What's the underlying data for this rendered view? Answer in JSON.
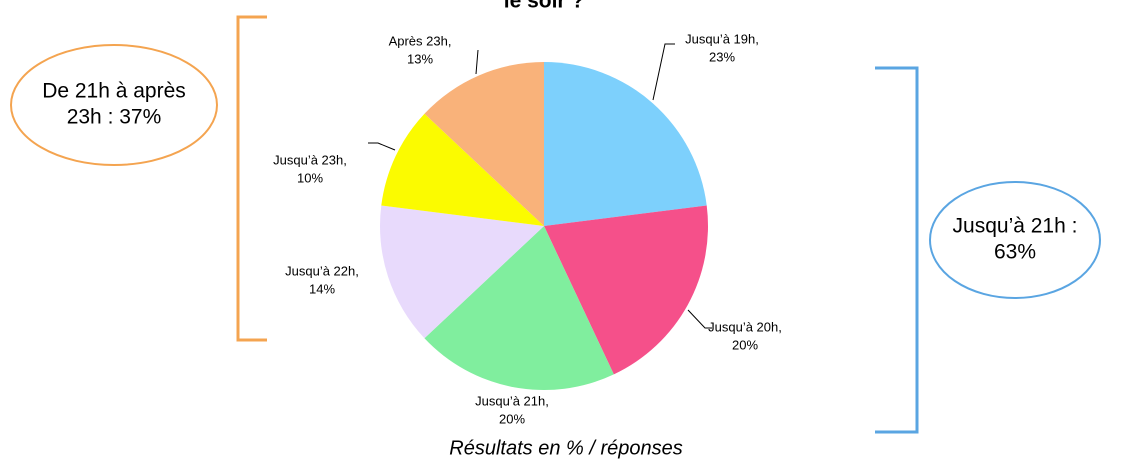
{
  "chart_data": {
    "type": "pie",
    "title": "le soir ?",
    "caption": "Résultats en % / réponses",
    "categories": [
      "Jusqu’à 19h,",
      "Jusqu’à 20h,",
      "Jusqu’à 21h,",
      "Jusqu’à 22h,",
      "Jusqu’à 23h,",
      "Après 23h,"
    ],
    "values": [
      23,
      20,
      20,
      14,
      10,
      13
    ],
    "value_labels": [
      "23%",
      "20%",
      "20%",
      "14%",
      "10%",
      "13%"
    ],
    "colors": [
      "#7dd0fc",
      "#f5508a",
      "#80ee9e",
      "#e8dafc",
      "#fbfb00",
      "#f9b27a"
    ],
    "annotations": [
      {
        "lines": [
          "De 21h à après",
          "23h : 37%"
        ],
        "color": "#f4a450"
      },
      {
        "lines": [
          "Jusqu’à 21h :",
          "63%"
        ],
        "color": "#5aa5e2"
      }
    ]
  }
}
